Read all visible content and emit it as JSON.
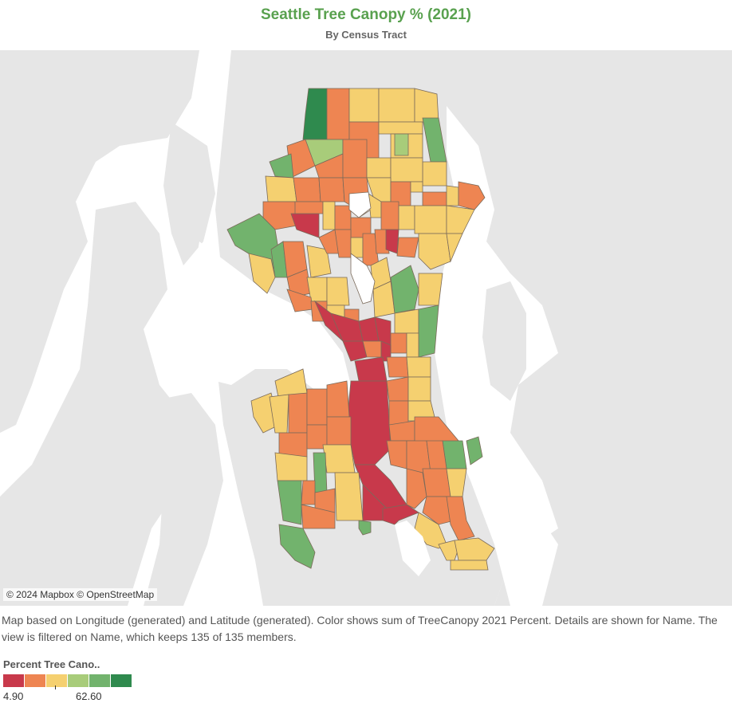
{
  "title": "Seattle Tree Canopy % (2021)",
  "subtitle": "By Census Tract",
  "attribution": "© 2024 Mapbox © OpenStreetMap",
  "caption": "Map based on Longitude (generated) and Latitude (generated).  Color shows sum of TreeCanopy 2021 Percent.  Details are shown for Name. The view is filtered on Name, which keeps 135 of 135 members.",
  "legend": {
    "title": "Percent Tree Cano..",
    "min": "4.90",
    "max": "62.60",
    "colors": [
      "#c8394b",
      "#ee8552",
      "#f5d070",
      "#a8cc7a",
      "#72b36d",
      "#2f8a4e"
    ]
  },
  "colors": {
    "red": "#c8394b",
    "orange": "#ee8552",
    "yellow": "#f5d070",
    "lightgreen": "#72b36d",
    "darkgreen": "#2f8a4e",
    "title": "#59a14f"
  }
}
